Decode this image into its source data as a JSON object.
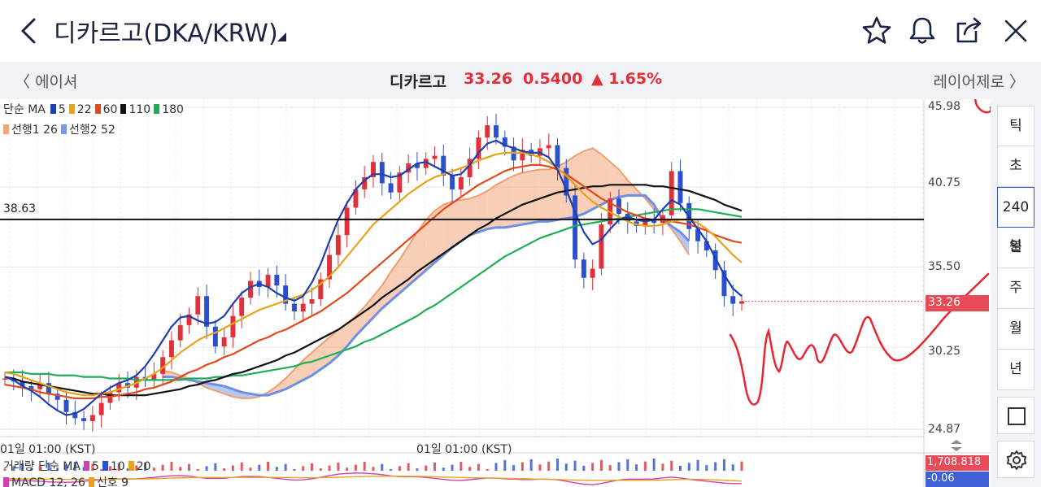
{
  "header": {
    "title": "디카르고(DKA/KRW)",
    "icons": [
      "back-chevron-icon",
      "star-icon",
      "bell-icon",
      "share-icon",
      "close-icon"
    ]
  },
  "subheader": {
    "prev": "에이셔",
    "next": "레이어제로",
    "name": "디카르고",
    "price": "33.26",
    "change": "0.5400",
    "change_pct": "▲ 1.65%",
    "up_color": "#e0303a"
  },
  "legend": {
    "ma_label": "단순 MA",
    "ma_periods": [
      "5",
      "22",
      "60",
      "110",
      "180"
    ],
    "ma_colors": [
      "#1f3fb0",
      "#e8a31a",
      "#e24a1e",
      "#111111",
      "#1fae55"
    ],
    "ichimoku": [
      {
        "label": "선행1 26",
        "color": "#f2a77a"
      },
      {
        "label": "선행2 52",
        "color": "#7a9ae8"
      }
    ]
  },
  "axis": {
    "y_ticks": [
      "45.98",
      "40.75",
      "35.50",
      "30.25",
      "24.87"
    ],
    "current_price_tag": "33.26",
    "x_ticks": [
      "01일 01:00 (KST)",
      "01일 01:00 (KST)"
    ],
    "hline_value": "38.63"
  },
  "volume": {
    "label": "거래량 단순 MA",
    "periods": [
      "5",
      "10",
      "20"
    ],
    "colors": [
      "#d23fb0",
      "#2a4fd0",
      "#e8a31a"
    ],
    "value_tag": "1,708.818"
  },
  "macd": {
    "label": "MACD 12, 26",
    "signal_label": "신호 9",
    "colors": [
      "#d23fb0",
      "#e8a31a"
    ],
    "value_tag": "-0.06"
  },
  "timeframes": {
    "items": [
      "틱",
      "초",
      "240분",
      "일",
      "주",
      "월",
      "년"
    ],
    "active": "240분"
  },
  "toolbar": {
    "icons": [
      "square-icon",
      "settings-gear-icon"
    ]
  },
  "chart_data": {
    "type": "candlestick",
    "ylim": [
      24.87,
      45.98
    ],
    "y_ticks": [
      45.98,
      40.75,
      35.5,
      30.25,
      24.87
    ],
    "current_price": 33.26,
    "horizontal_line": 38.63,
    "closes": [
      28.2,
      28.0,
      27.7,
      27.5,
      27.9,
      27.2,
      26.8,
      26.0,
      25.6,
      25.4,
      25.8,
      26.6,
      27.3,
      27.9,
      27.6,
      28.3,
      28.1,
      28.5,
      29.6,
      30.7,
      31.7,
      32.4,
      33.6,
      31.6,
      30.3,
      30.9,
      32.3,
      33.5,
      34.6,
      34.2,
      35.0,
      34.3,
      33.1,
      32.6,
      33.1,
      33.4,
      34.7,
      36.3,
      37.6,
      39.4,
      40.6,
      41.4,
      42.4,
      41.0,
      40.4,
      41.7,
      42.3,
      42.0,
      42.6,
      42.8,
      41.5,
      40.6,
      41.4,
      42.6,
      44.0,
      44.8,
      44.0,
      43.4,
      42.5,
      43.2,
      42.8,
      43.3,
      43.5,
      42.0,
      40.2,
      36.0,
      34.8,
      35.4,
      38.3,
      40.0,
      39.0,
      38.5,
      38.2,
      38.6,
      38.4,
      38.9,
      41.8,
      39.7,
      38.0,
      37.2,
      36.6,
      35.3,
      33.6,
      33.1,
      33.26
    ],
    "ma5": [
      28.3,
      28.1,
      27.7,
      27.4,
      27.0,
      26.5,
      26.1,
      25.8,
      25.9,
      26.2,
      26.7,
      27.2,
      27.6,
      27.9,
      28.1,
      28.4,
      29.0,
      29.8,
      30.7,
      31.6,
      32.2,
      32.3,
      32.0,
      31.8,
      31.9,
      32.3,
      33.1,
      33.8,
      34.2,
      34.4,
      34.2,
      33.8,
      33.5,
      33.3,
      33.6,
      34.5,
      35.7,
      37.2,
      38.6,
      39.7,
      40.6,
      41.2,
      41.6,
      41.6,
      41.4,
      41.5,
      41.9,
      42.3,
      42.4,
      42.1,
      41.8,
      41.5,
      41.6,
      42.2,
      43.0,
      43.6,
      43.8,
      43.5,
      43.3,
      43.1,
      43.0,
      43.0,
      42.7,
      41.9,
      40.6,
      39.1,
      37.8,
      37.0,
      37.3,
      38.0,
      38.6,
      38.8,
      38.6,
      38.5,
      38.6,
      39.3,
      39.9,
      39.6,
      38.8,
      38.0,
      37.2,
      36.1,
      35.0,
      34.1,
      33.6
    ],
    "ma22": [
      28.6,
      28.5,
      28.3,
      28.1,
      27.9,
      27.7,
      27.5,
      27.3,
      27.2,
      27.1,
      27.1,
      27.2,
      27.3,
      27.5,
      27.7,
      27.9,
      28.2,
      28.5,
      28.9,
      29.4,
      29.9,
      30.3,
      30.7,
      31.0,
      31.2,
      31.5,
      31.8,
      32.1,
      32.4,
      32.7,
      32.9,
      33.1,
      33.3,
      33.5,
      33.7,
      34.0,
      34.4,
      34.9,
      35.5,
      36.2,
      36.9,
      37.6,
      38.3,
      38.8,
      39.3,
      39.8,
      40.3,
      40.7,
      41.1,
      41.4,
      41.6,
      41.8,
      42.0,
      42.2,
      42.5,
      42.7,
      42.9,
      43.0,
      43.0,
      43.0,
      42.9,
      42.7,
      42.4,
      42.0,
      41.5,
      40.9,
      40.3,
      39.8,
      39.4,
      39.1,
      38.8,
      38.5,
      38.3,
      38.2,
      38.2,
      38.3,
      38.5,
      38.6,
      38.6,
      38.4,
      38.0,
      37.5,
      36.9,
      36.3,
      35.8
    ],
    "ma60": [
      27.8,
      27.7,
      27.6,
      27.5,
      27.3,
      27.2,
      27.1,
      27.0,
      26.9,
      26.9,
      26.9,
      27.0,
      27.0,
      27.1,
      27.2,
      27.3,
      27.5,
      27.6,
      27.8,
      28.0,
      28.3,
      28.6,
      28.8,
      29.1,
      29.3,
      29.6,
      29.8,
      30.1,
      30.4,
      30.7,
      30.9,
      31.2,
      31.4,
      31.7,
      32.0,
      32.3,
      32.6,
      33.0,
      33.4,
      33.8,
      34.3,
      34.8,
      35.3,
      35.8,
      36.3,
      36.8,
      37.3,
      37.8,
      38.3,
      38.8,
      39.3,
      39.7,
      40.1,
      40.5,
      40.9,
      41.2,
      41.5,
      41.8,
      42.0,
      42.1,
      42.2,
      42.2,
      42.1,
      41.9,
      41.6,
      41.2,
      40.8,
      40.4,
      40.0,
      39.7,
      39.4,
      39.1,
      38.9,
      38.7,
      38.6,
      38.6,
      38.5,
      38.4,
      38.3,
      38.1,
      37.9,
      37.6,
      37.4,
      37.2,
      37.1
    ],
    "ma110": [
      28.3,
      28.2,
      28.0,
      27.9,
      27.8,
      27.7,
      27.6,
      27.5,
      27.4,
      27.3,
      27.2,
      27.2,
      27.1,
      27.1,
      27.1,
      27.1,
      27.1,
      27.2,
      27.3,
      27.4,
      27.5,
      27.7,
      27.8,
      28.0,
      28.1,
      28.3,
      28.5,
      28.6,
      28.8,
      29.0,
      29.2,
      29.4,
      29.7,
      29.9,
      30.2,
      30.5,
      30.8,
      31.1,
      31.4,
      31.8,
      32.2,
      32.6,
      33.0,
      33.5,
      33.9,
      34.3,
      34.7,
      35.2,
      35.6,
      36.0,
      36.4,
      36.8,
      37.2,
      37.6,
      38.0,
      38.3,
      38.7,
      39.0,
      39.3,
      39.6,
      39.8,
      40.0,
      40.2,
      40.4,
      40.5,
      40.6,
      40.7,
      40.8,
      40.8,
      40.9,
      40.9,
      40.9,
      40.9,
      40.9,
      40.8,
      40.8,
      40.7,
      40.6,
      40.5,
      40.3,
      40.1,
      39.9,
      39.6,
      39.4,
      39.2
    ],
    "ma180": [
      28.6,
      28.6,
      28.6,
      28.5,
      28.5,
      28.5,
      28.4,
      28.4,
      28.4,
      28.3,
      28.3,
      28.3,
      28.2,
      28.2,
      28.2,
      28.1,
      28.1,
      28.1,
      28.1,
      28.1,
      28.1,
      28.2,
      28.2,
      28.2,
      28.3,
      28.3,
      28.4,
      28.4,
      28.5,
      28.6,
      28.7,
      28.8,
      28.9,
      29.0,
      29.2,
      29.3,
      29.5,
      29.7,
      29.9,
      30.1,
      30.3,
      30.6,
      30.8,
      31.1,
      31.4,
      31.7,
      32.0,
      32.3,
      32.7,
      33.0,
      33.4,
      33.8,
      34.2,
      34.6,
      35.0,
      35.4,
      35.8,
      36.2,
      36.5,
      36.8,
      37.1,
      37.4,
      37.6,
      37.8,
      38.0,
      38.2,
      38.3,
      38.4,
      38.5,
      38.6,
      38.7,
      38.8,
      38.9,
      39.0,
      39.1,
      39.2,
      39.3,
      39.3,
      39.3,
      39.3,
      39.2,
      39.1,
      39.0,
      38.9,
      38.8
    ],
    "span_a": [
      28.7,
      28.6,
      28.4,
      28.2,
      27.9,
      27.6,
      27.4,
      27.2,
      27.0,
      26.9,
      26.9,
      27.0,
      27.3,
      27.7,
      28.2,
      28.8,
      29.4,
      29.9,
      30.4,
      30.9,
      31.4,
      31.8,
      32.3,
      32.9,
      33.6,
      34.3,
      35.2,
      36.0,
      36.9,
      37.8,
      38.6,
      39.2,
      39.6,
      39.8,
      39.9,
      40.0,
      40.2,
      40.5,
      40.9,
      41.2,
      41.5,
      41.7,
      41.8,
      41.9,
      41.9,
      42.1,
      42.4,
      42.8,
      43.1,
      43.3,
      42.9,
      42.4,
      41.9,
      41.2,
      40.6,
      40.0,
      39.3,
      38.7,
      38.0,
      37.2,
      36.3
    ],
    "span_b": [
      28.3,
      28.3,
      28.2,
      28.1,
      28.0,
      27.9,
      27.8,
      27.7,
      27.5,
      27.3,
      27.2,
      27.1,
      27.1,
      27.3,
      27.5,
      27.8,
      28.1,
      28.4,
      28.8,
      29.2,
      29.7,
      30.3,
      31.0,
      31.6,
      32.2,
      32.8,
      33.3,
      33.8,
      34.3,
      34.8,
      35.3,
      35.8,
      36.3,
      36.8,
      37.2,
      37.6,
      37.8,
      38.0,
      38.1,
      38.1,
      38.2,
      38.3,
      38.4,
      38.5,
      38.5,
      38.6,
      38.7,
      38.8,
      39.0,
      39.3,
      39.6,
      39.9,
      40.1,
      40.2,
      40.2,
      40.2,
      39.6,
      38.6,
      38.2,
      37.8,
      37.2
    ]
  }
}
